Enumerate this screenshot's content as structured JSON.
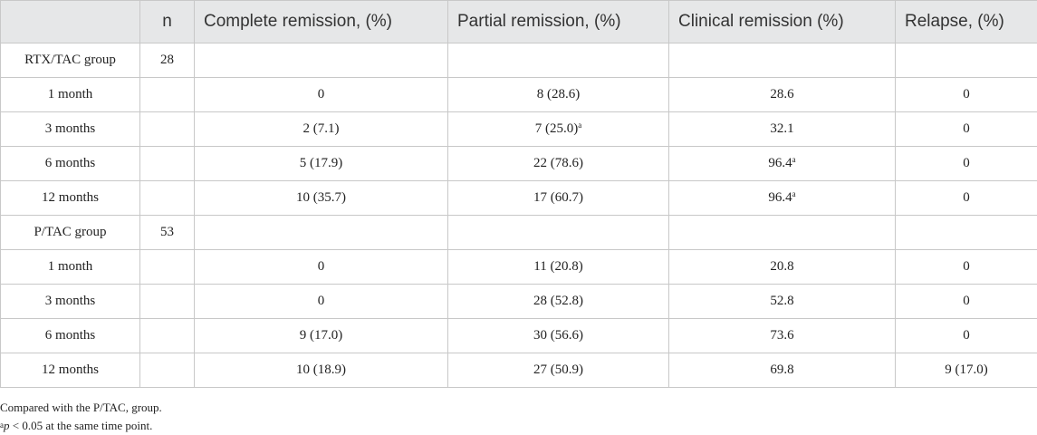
{
  "headers": [
    "",
    "n",
    "Complete remission, (%)",
    "Partial remission, (%)",
    "Clinical remission (%)",
    "Relapse, (%)"
  ],
  "rows": [
    {
      "label": "RTX/TAC group",
      "n": "28",
      "cr": "",
      "pr": "",
      "pr_sup": "",
      "clin": "",
      "clin_sup": "",
      "rel": ""
    },
    {
      "label": "1 month",
      "n": "",
      "cr": "0",
      "pr": "8 (28.6)",
      "pr_sup": "",
      "clin": "28.6",
      "clin_sup": "",
      "rel": "0"
    },
    {
      "label": "3 months",
      "n": "",
      "cr": "2 (7.1)",
      "pr": "7 (25.0)",
      "pr_sup": "a",
      "clin": "32.1",
      "clin_sup": "",
      "rel": "0"
    },
    {
      "label": "6 months",
      "n": "",
      "cr": "5 (17.9)",
      "pr": "22 (78.6)",
      "pr_sup": "",
      "clin": "96.4",
      "clin_sup": "a",
      "rel": "0"
    },
    {
      "label": "12 months",
      "n": "",
      "cr": "10 (35.7)",
      "pr": "17 (60.7)",
      "pr_sup": "",
      "clin": "96.4",
      "clin_sup": "a",
      "rel": "0"
    },
    {
      "label": "P/TAC group",
      "n": "53",
      "cr": "",
      "pr": "",
      "pr_sup": "",
      "clin": "",
      "clin_sup": "",
      "rel": ""
    },
    {
      "label": "1 month",
      "n": "",
      "cr": "0",
      "pr": "11 (20.8)",
      "pr_sup": "",
      "clin": "20.8",
      "clin_sup": "",
      "rel": "0"
    },
    {
      "label": "3 months",
      "n": "",
      "cr": "0",
      "pr": "28 (52.8)",
      "pr_sup": "",
      "clin": "52.8",
      "clin_sup": "",
      "rel": "0"
    },
    {
      "label": "6 months",
      "n": "",
      "cr": "9 (17.0)",
      "pr": "30 (56.6)",
      "pr_sup": "",
      "clin": "73.6",
      "clin_sup": "",
      "rel": "0"
    },
    {
      "label": "12 months",
      "n": "",
      "cr": "10 (18.9)",
      "pr": "27 (50.9)",
      "pr_sup": "",
      "clin": "69.8",
      "clin_sup": "",
      "rel": "9 (17.0)"
    }
  ],
  "notes": {
    "line1": "Compared with the P/TAC, group.",
    "line2_sup": "a",
    "line2_p": "p",
    "line2_rest": " < 0.05 at the same time point."
  }
}
